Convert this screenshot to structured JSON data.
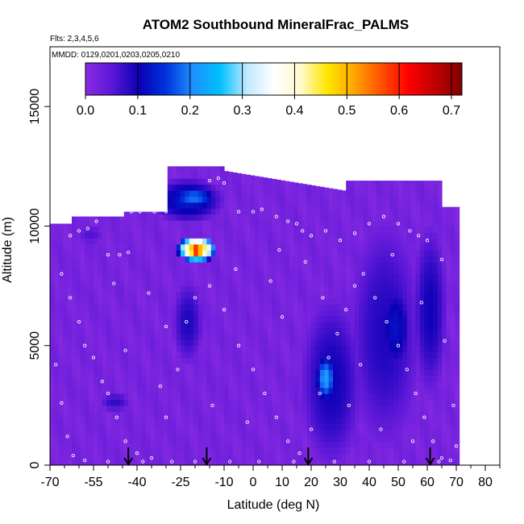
{
  "chart_data": {
    "type": "heatmap",
    "title": "ATOM2 Southbound MineralFrac_PALMS",
    "flights_label": "Flts: 2,3,4,5,6",
    "dates_label": "MMDD: 0129,0201,0203,0205,0210",
    "xlabel": "Latitude (deg N)",
    "ylabel": "Altitude (m)",
    "xlim": [
      -70,
      85
    ],
    "ylim": [
      0,
      17500
    ],
    "x_ticks": [
      -70,
      -55,
      -40,
      -25,
      -10,
      0,
      10,
      20,
      30,
      40,
      50,
      60,
      70,
      80
    ],
    "x_tick_labels": [
      "-70",
      "-55",
      "-40",
      "-25",
      "-10",
      "0",
      "10",
      "20",
      "30",
      "40",
      "50",
      "60",
      "70",
      "80"
    ],
    "y_ticks": [
      0,
      5000,
      10000,
      15000
    ],
    "y_tick_labels": [
      "0",
      "5000",
      "10000",
      "15000"
    ],
    "colorbar": {
      "range": [
        0,
        0.72
      ],
      "ticks": [
        0.0,
        0.1,
        0.2,
        0.3,
        0.4,
        0.5,
        0.6,
        0.7
      ],
      "tick_labels": [
        "0.0",
        "0.1",
        "0.2",
        "0.3",
        "0.4",
        "0.5",
        "0.6",
        "0.7"
      ],
      "colors": [
        "#8a2be2",
        "#5a17d6",
        "#0a00b5",
        "#0033dd",
        "#1e90ff",
        "#00bfff",
        "#bfe9ff",
        "#ffffff",
        "#fffacd",
        "#ffe600",
        "#ffa500",
        "#ff5000",
        "#ff0000",
        "#c00000",
        "#800000"
      ]
    },
    "background_value": 0.02,
    "data_extent": {
      "lat_range": [
        -70,
        71
      ],
      "alt_max_south": 10400,
      "alt_max_mid": 12500,
      "alt_max_north": 11900
    },
    "features": [
      {
        "lat": [
          -33,
          -12
        ],
        "alt": [
          10300,
          11900
        ],
        "value": 0.13
      },
      {
        "lat": [
          -27,
          -14
        ],
        "alt": [
          10800,
          11600
        ],
        "value": 0.19
      },
      {
        "lat": [
          -25,
          -14
        ],
        "alt": [
          8600,
          9500
        ],
        "value": 0.52
      },
      {
        "lat": [
          -22,
          -17
        ],
        "alt": [
          8700,
          9300
        ],
        "value": 0.65
      },
      {
        "lat": [
          -27,
          -18
        ],
        "alt": [
          4500,
          7500
        ],
        "value": 0.09
      },
      {
        "lat": [
          -52,
          -43
        ],
        "alt": [
          2300,
          3000
        ],
        "value": 0.08
      },
      {
        "lat": [
          -60,
          -52
        ],
        "alt": [
          9300,
          10000
        ],
        "value": 0.06
      },
      {
        "lat": [
          18,
          36
        ],
        "alt": [
          500,
          6500
        ],
        "value": 0.1
      },
      {
        "lat": [
          22,
          28
        ],
        "alt": [
          2800,
          4500
        ],
        "value": 0.22
      },
      {
        "lat": [
          35,
          56
        ],
        "alt": [
          1500,
          9500
        ],
        "value": 0.09
      },
      {
        "lat": [
          44,
          54
        ],
        "alt": [
          4000,
          7500
        ],
        "value": 0.12
      },
      {
        "lat": [
          56,
          66
        ],
        "alt": [
          3500,
          9500
        ],
        "value": 0.1
      }
    ],
    "arrow_latitudes": [
      -43,
      -16,
      19,
      61
    ],
    "arrow_label": "",
    "series": [
      {
        "name": "",
        "points": [
          [
            -63,
            9600
          ],
          [
            -60,
            9800
          ],
          [
            -57,
            9900
          ],
          [
            -54,
            10200
          ],
          [
            -50,
            8800
          ],
          [
            -46,
            8800
          ],
          [
            -43,
            8900
          ],
          [
            -42,
            10600
          ],
          [
            -39,
            10600
          ],
          [
            -34,
            10600
          ],
          [
            -30,
            10600
          ],
          [
            -45,
            11600
          ],
          [
            -42,
            11900
          ],
          [
            -40,
            12100
          ],
          [
            -15,
            11900
          ],
          [
            -12,
            12000
          ],
          [
            -10,
            11800
          ],
          [
            -5,
            10600
          ],
          [
            0,
            10600
          ],
          [
            3,
            10700
          ],
          [
            8,
            10400
          ],
          [
            12,
            10200
          ],
          [
            15,
            10100
          ],
          [
            17,
            9800
          ],
          [
            20,
            9600
          ],
          [
            25,
            9800
          ],
          [
            30,
            9400
          ],
          [
            35,
            9700
          ],
          [
            40,
            10100
          ],
          [
            45,
            10400
          ],
          [
            50,
            10100
          ],
          [
            54,
            9800
          ],
          [
            57,
            9600
          ],
          [
            60,
            9400
          ],
          [
            65,
            8600
          ],
          [
            -66,
            8000
          ],
          [
            -63,
            7000
          ],
          [
            -60,
            6000
          ],
          [
            -58,
            5000
          ],
          [
            -55,
            4500
          ],
          [
            -52,
            3500
          ],
          [
            -50,
            3000
          ],
          [
            -47,
            2000
          ],
          [
            -44,
            1000
          ],
          [
            -40,
            500
          ],
          [
            -35,
            300
          ],
          [
            -30,
            2000
          ],
          [
            -26,
            4000
          ],
          [
            -23,
            6000
          ],
          [
            -20,
            7000
          ],
          [
            -15,
            7500
          ],
          [
            -10,
            6500
          ],
          [
            -5,
            5000
          ],
          [
            0,
            4000
          ],
          [
            4,
            3000
          ],
          [
            8,
            2000
          ],
          [
            12,
            1000
          ],
          [
            16,
            500
          ],
          [
            20,
            1500
          ],
          [
            23,
            3000
          ],
          [
            26,
            4500
          ],
          [
            29,
            5500
          ],
          [
            32,
            6500
          ],
          [
            35,
            7500
          ],
          [
            38,
            8000
          ],
          [
            42,
            7000
          ],
          [
            46,
            6000
          ],
          [
            50,
            5000
          ],
          [
            53,
            4000
          ],
          [
            56,
            3000
          ],
          [
            59,
            2000
          ],
          [
            62,
            1000
          ],
          [
            65,
            300
          ],
          [
            68,
            200
          ],
          [
            70,
            800
          ],
          [
            -68,
            4200
          ],
          [
            -66,
            2600
          ],
          [
            -64,
            1200
          ],
          [
            -62,
            400
          ],
          [
            -58,
            200
          ],
          [
            -50,
            150
          ],
          [
            -38,
            150
          ],
          [
            -28,
            150
          ],
          [
            -20,
            150
          ],
          [
            -8,
            150
          ],
          [
            2,
            150
          ],
          [
            14,
            150
          ],
          [
            28,
            150
          ],
          [
            40,
            150
          ],
          [
            52,
            150
          ],
          [
            64,
            150
          ],
          [
            -48,
            7600
          ],
          [
            -36,
            7200
          ],
          [
            -30,
            5800
          ],
          [
            -14,
            2500
          ],
          [
            -6,
            8200
          ],
          [
            6,
            7700
          ],
          [
            10,
            6200
          ],
          [
            18,
            8500
          ],
          [
            24,
            7000
          ],
          [
            33,
            2500
          ],
          [
            44,
            1500
          ],
          [
            48,
            8800
          ],
          [
            58,
            6800
          ],
          [
            66,
            5200
          ],
          [
            -44,
            4800
          ],
          [
            -32,
            3300
          ],
          [
            -2,
            1800
          ],
          [
            9,
            9000
          ],
          [
            37,
            4200
          ],
          [
            55,
            1000
          ],
          [
            69,
            2500
          ]
        ]
      }
    ]
  }
}
